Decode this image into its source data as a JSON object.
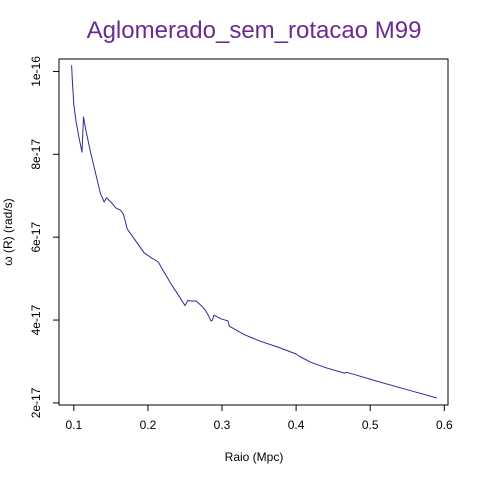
{
  "chart_data": {
    "type": "line",
    "title": "Aglomerado_sem_rotacao M99",
    "xlabel": "Raio (Mpc)",
    "ylabel": "ω (R) (rad/s)",
    "xlim": [
      0.08,
      0.605
    ],
    "ylim": [
      1.95e-17,
      1.03e-16
    ],
    "x_ticks": [
      0.1,
      0.2,
      0.3,
      0.4,
      0.5,
      0.6
    ],
    "x_tick_labels": [
      "0.1",
      "0.2",
      "0.3",
      "0.4",
      "0.5",
      "0.6"
    ],
    "y_ticks": [
      2e-17,
      4e-17,
      6e-17,
      8e-17,
      1e-16
    ],
    "y_tick_labels": [
      "2e-17",
      "4e-17",
      "6e-17",
      "8e-17",
      "1e-16"
    ],
    "grid": false,
    "colors": {
      "line": "#2b2b9a",
      "title": "#6a2c91",
      "axis": "#000000"
    },
    "series": [
      {
        "x": [
          0.097,
          0.098,
          0.1,
          0.103,
          0.107,
          0.111,
          0.113,
          0.116,
          0.122,
          0.13,
          0.136,
          0.141,
          0.144,
          0.15,
          0.157,
          0.163,
          0.167,
          0.172,
          0.18,
          0.195,
          0.205,
          0.214,
          0.222,
          0.232,
          0.243,
          0.25,
          0.254,
          0.256,
          0.265,
          0.272,
          0.277,
          0.282,
          0.285,
          0.287,
          0.289,
          0.293,
          0.3,
          0.308,
          0.31,
          0.315,
          0.33,
          0.35,
          0.375,
          0.4,
          0.405,
          0.42,
          0.44,
          0.465,
          0.468,
          0.48,
          0.51,
          0.55,
          0.59
        ],
        "y": [
          1.015e-16,
          9.8e-17,
          9.2e-17,
          8.8e-17,
          8.4e-17,
          8.05e-17,
          8.9e-17,
          8.6e-17,
          8.1e-17,
          7.5e-17,
          7.05e-17,
          6.85e-17,
          6.95e-17,
          6.85e-17,
          6.7e-17,
          6.65e-17,
          6.55e-17,
          6.2e-17,
          6e-17,
          5.62e-17,
          5.5e-17,
          5.4e-17,
          5.15e-17,
          4.85e-17,
          4.55e-17,
          4.35e-17,
          4.48e-17,
          4.46e-17,
          4.46e-17,
          4.35e-17,
          4.25e-17,
          4.1e-17,
          3.98e-17,
          4e-17,
          4.12e-17,
          4.08e-17,
          4.02e-17,
          3.98e-17,
          3.85e-17,
          3.8e-17,
          3.65e-17,
          3.5e-17,
          3.35e-17,
          3.18e-17,
          3.12e-17,
          2.98e-17,
          2.85e-17,
          2.72e-17,
          2.74e-17,
          2.68e-17,
          2.52e-17,
          2.32e-17,
          2.12e-17
        ]
      }
    ]
  }
}
